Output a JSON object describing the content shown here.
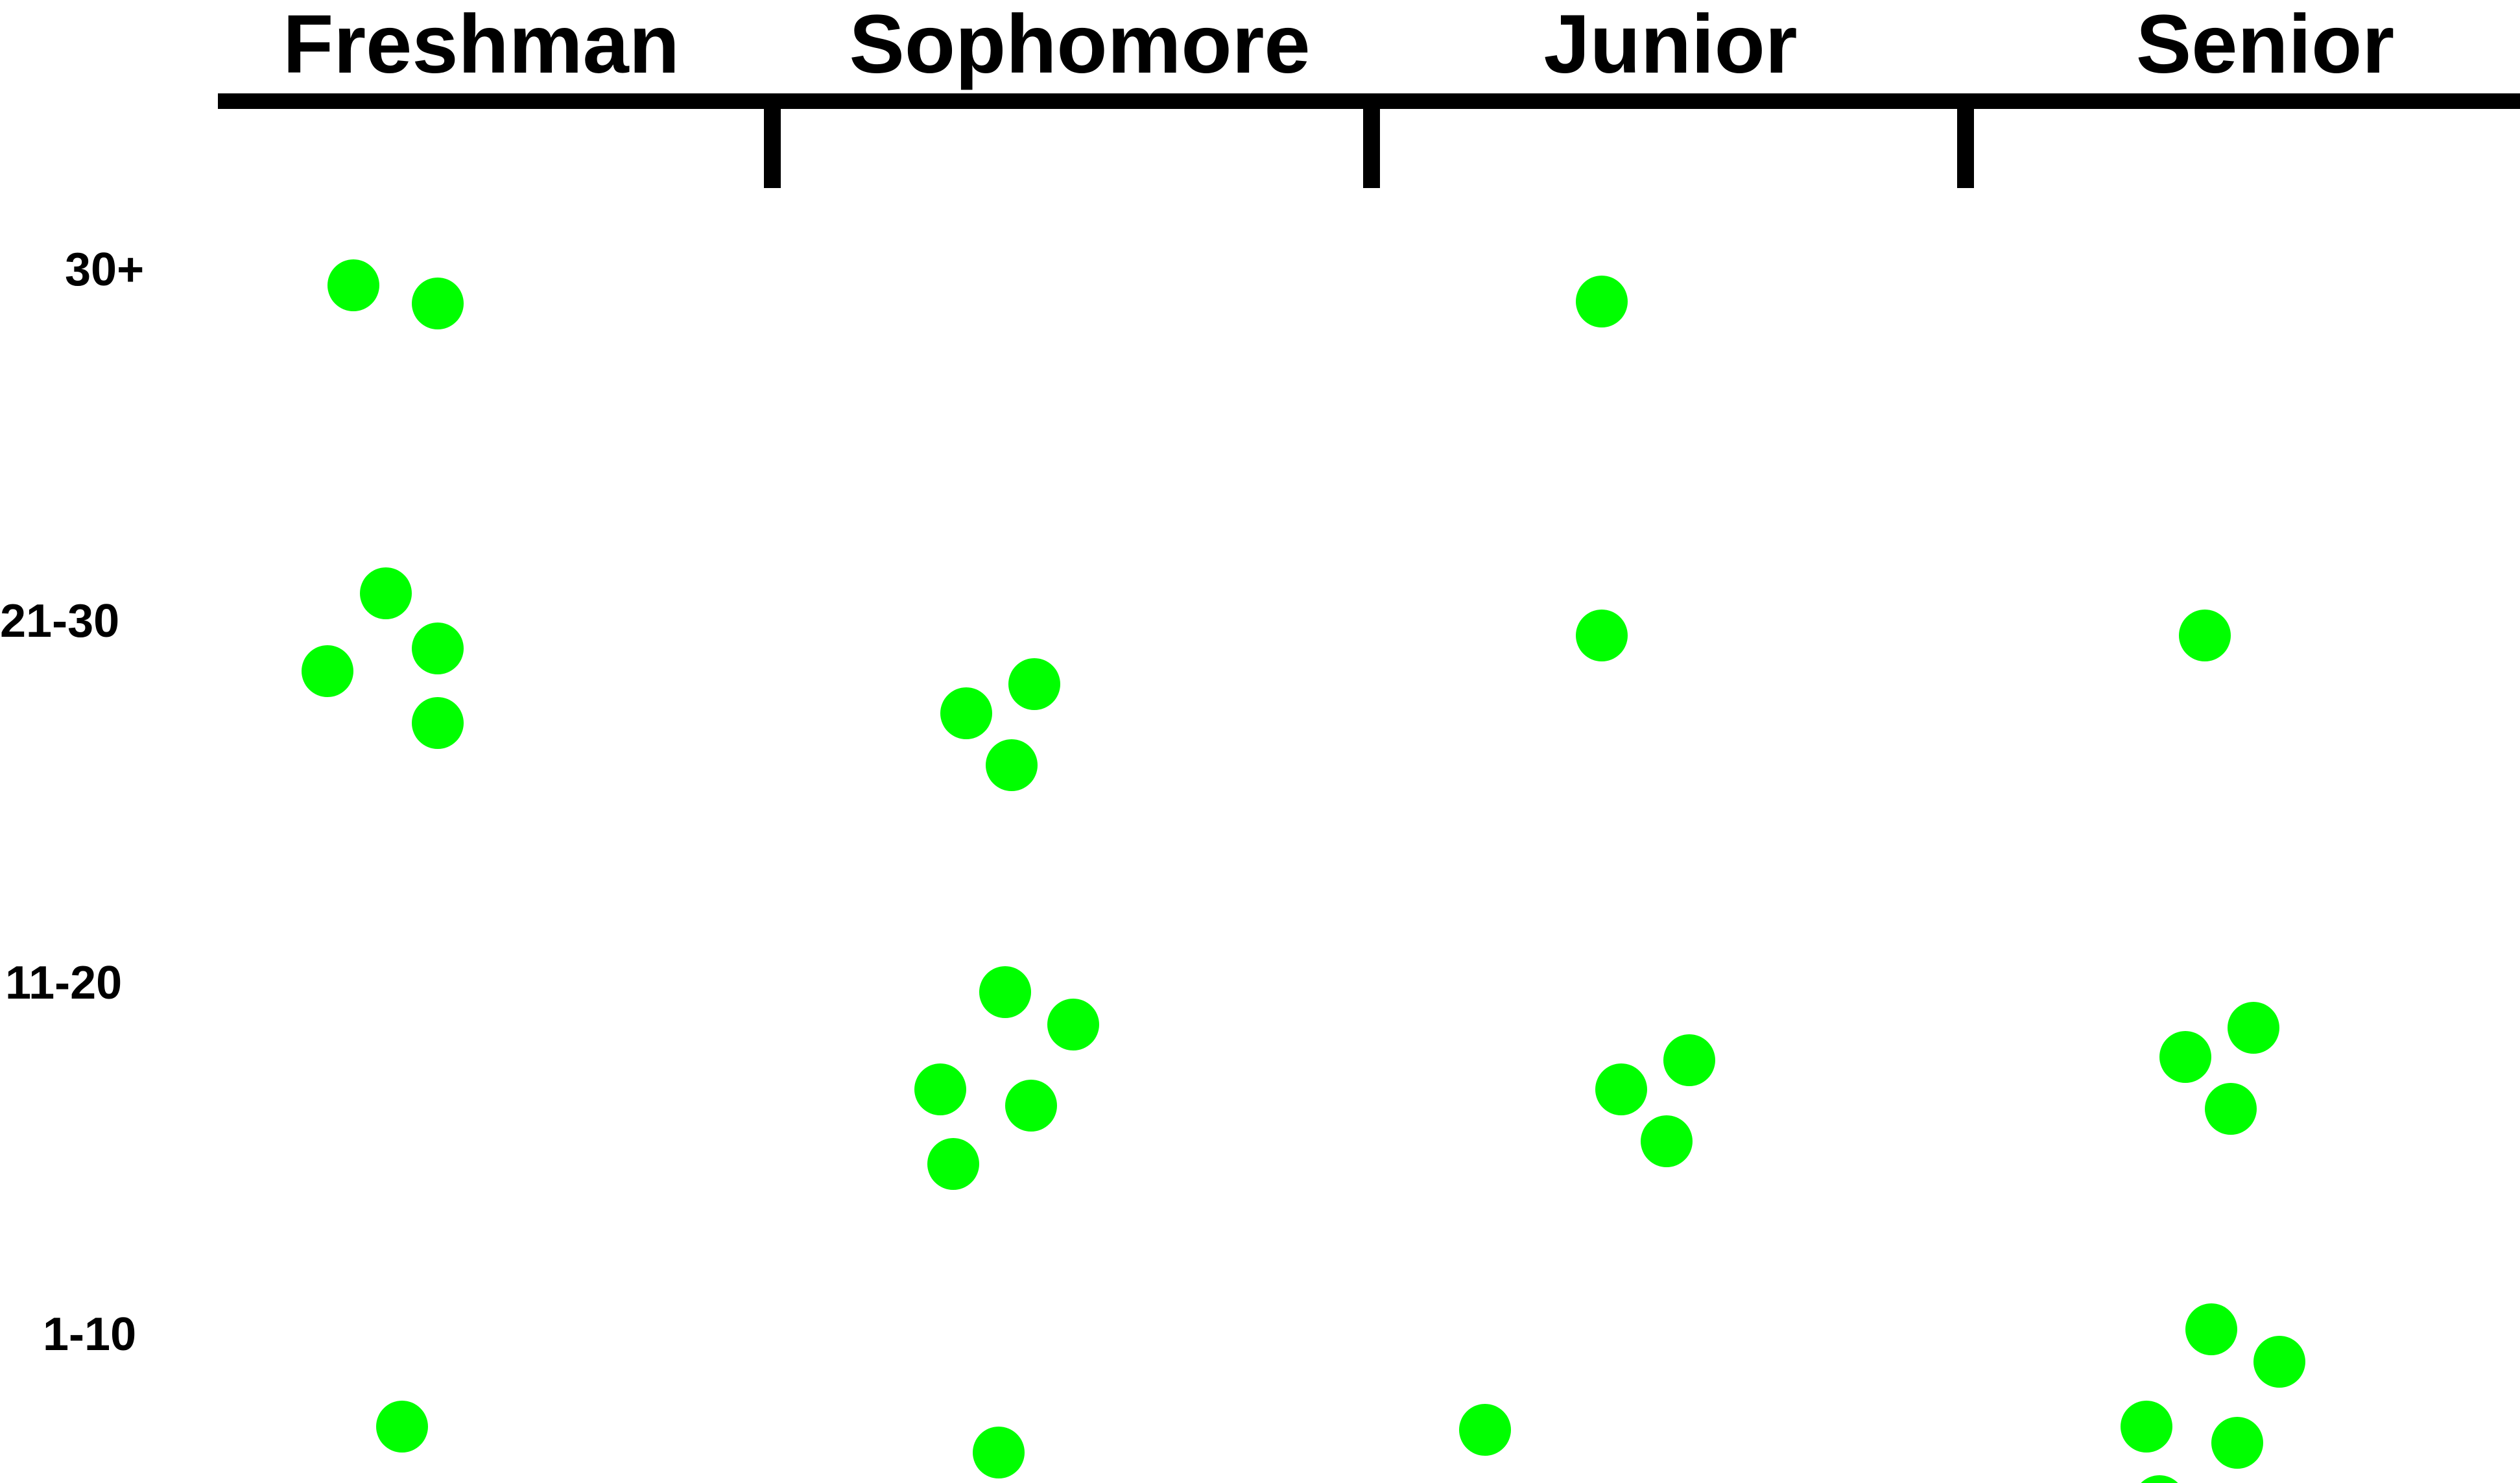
{
  "chart_data": {
    "type": "scatter",
    "title": "",
    "xlabel": "",
    "ylabel": "",
    "columns": [
      "Freshman",
      "Sophomore",
      "Junior",
      "Senior"
    ],
    "rows": [
      "30+",
      "21-30",
      "11-20",
      "1-10"
    ],
    "colors": {
      "dot": "#00ff00",
      "line": "#000000"
    },
    "grid": false,
    "legend": "none",
    "cell_counts": {
      "Freshman": {
        "30+": 2,
        "21-30": 4,
        "11-20": 0,
        "1-10": 1
      },
      "Sophomore": {
        "30+": 0,
        "21-30": 3,
        "11-20": 5,
        "1-10": 1
      },
      "Junior": {
        "30+": 1,
        "21-30": 1,
        "11-20": 3,
        "1-10": 1
      },
      "Senior": {
        "30+": 0,
        "21-30": 1,
        "11-20": 3,
        "1-10": 5
      }
    }
  }
}
